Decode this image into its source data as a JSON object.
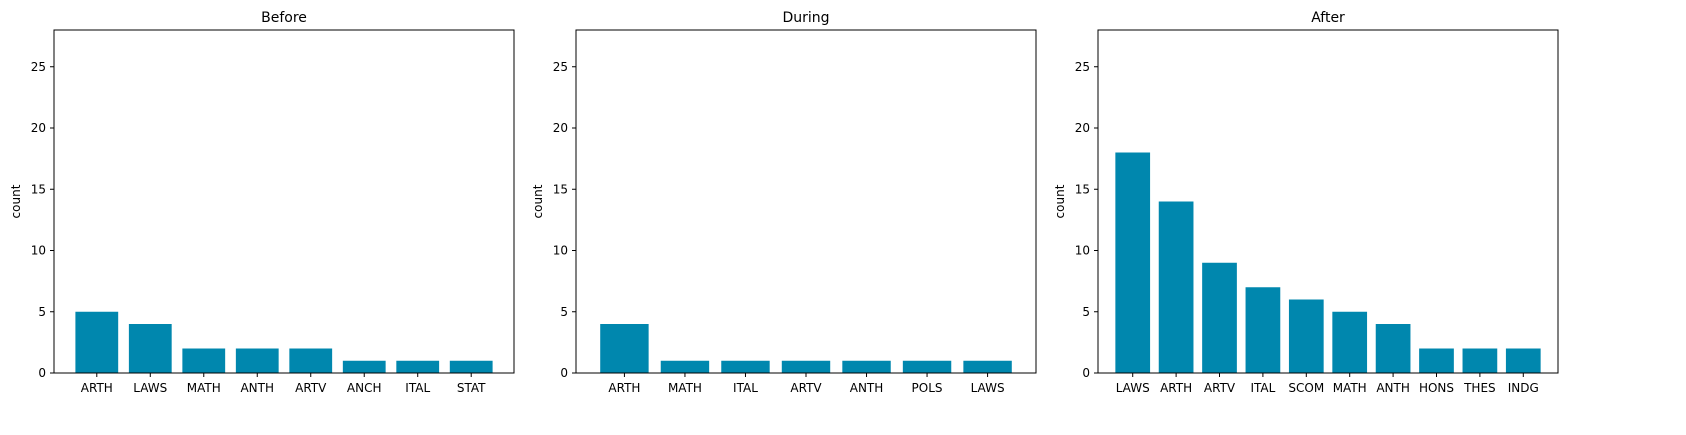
{
  "chart_data": [
    {
      "type": "bar",
      "title": "Before",
      "xlabel": "",
      "ylabel": "count",
      "ylim": [
        0,
        28
      ],
      "yticks": [
        0,
        5,
        10,
        15,
        20,
        25
      ],
      "categories": [
        "ARTH",
        "LAWS",
        "MATH",
        "ANTH",
        "ARTV",
        "ANCH",
        "ITAL",
        "STAT"
      ],
      "values": [
        5,
        4,
        2,
        2,
        2,
        1,
        1,
        1
      ],
      "color": "#0087AE",
      "grid": false
    },
    {
      "type": "bar",
      "title": "During",
      "xlabel": "",
      "ylabel": "count",
      "ylim": [
        0,
        28
      ],
      "yticks": [
        0,
        5,
        10,
        15,
        20,
        25
      ],
      "categories": [
        "ARTH",
        "MATH",
        "ITAL",
        "ARTV",
        "ANTH",
        "POLS",
        "LAWS"
      ],
      "values": [
        4,
        1,
        1,
        1,
        1,
        1,
        1
      ],
      "color": "#0087AE",
      "grid": false
    },
    {
      "type": "bar",
      "title": "After",
      "xlabel": "",
      "ylabel": "count",
      "ylim": [
        0,
        28
      ],
      "yticks": [
        0,
        5,
        10,
        15,
        20,
        25
      ],
      "categories": [
        "LAWS",
        "ARTH",
        "ARTV",
        "ITAL",
        "SCOM",
        "MATH",
        "ANTH",
        "HONS",
        "THES",
        "INDG"
      ],
      "values": [
        18,
        14,
        9,
        7,
        6,
        5,
        4,
        2,
        2,
        2
      ],
      "color": "#0087AE",
      "grid": false
    }
  ]
}
